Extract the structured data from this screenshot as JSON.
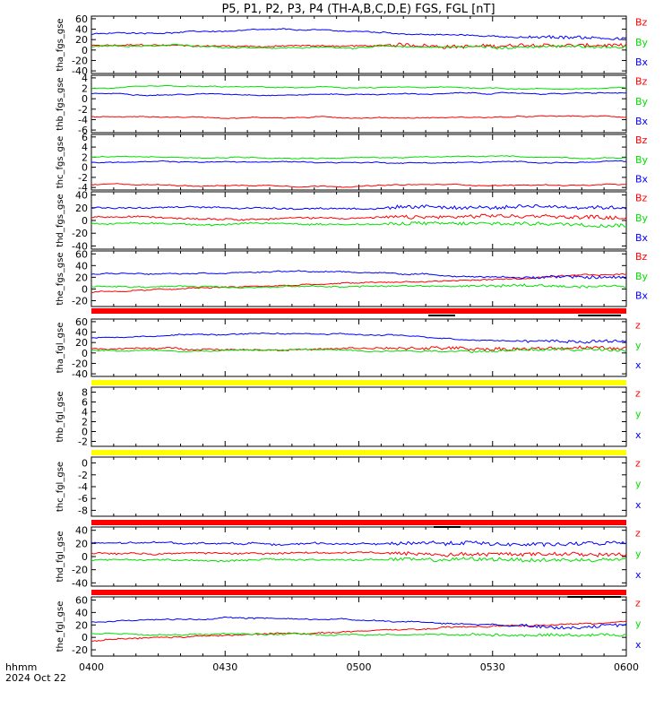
{
  "title": "P5, P1, P2, P3, P4 (TH-A,B,C,D,E) FGS, FGL [nT]",
  "colors": {
    "x": "#0000ff",
    "y": "#00e000",
    "z": "#ff0000",
    "frame": "#000000",
    "bar_red": "#ff0000",
    "bar_yellow": "#ffff00",
    "bar_black": "#000000"
  },
  "x_axis": {
    "tick_labels": [
      "0400",
      "0430",
      "0500",
      "0530",
      "0600"
    ],
    "corner_label_line1": "hhmm",
    "corner_label_line2": "2024 Oct 22"
  },
  "chart_data": [
    {
      "type": "line",
      "ylabel": "tha_fgs_gse",
      "yticks": [
        60,
        40,
        20,
        0,
        -20,
        -40
      ],
      "ylim": [
        -45,
        65
      ],
      "series": [
        {
          "name": "Bz",
          "color": "z",
          "style": "noisy_rising",
          "base": 8
        },
        {
          "name": "By",
          "color": "y",
          "style": "moderate",
          "base": 6
        },
        {
          "name": "Bx",
          "color": "x",
          "style": "high",
          "base": 30
        }
      ],
      "note_label_colors": [
        "z",
        "y",
        "x"
      ]
    },
    {
      "type": "line",
      "ylabel": "thb_fgs_gse",
      "yticks": [
        4,
        2,
        0,
        -2,
        -4,
        -6
      ],
      "ylim": [
        -6.5,
        4.5
      ],
      "series": [
        {
          "name": "Bz",
          "color": "z",
          "style": "flat",
          "base": -3.5
        },
        {
          "name": "By",
          "color": "y",
          "style": "flat",
          "base": 2
        },
        {
          "name": "Bx",
          "color": "x",
          "style": "flat",
          "base": 1
        }
      ]
    },
    {
      "type": "line",
      "ylabel": "thc_fgs_gse",
      "yticks": [
        6,
        4,
        2,
        0,
        -2,
        -4
      ],
      "ylim": [
        -4.5,
        6.5
      ],
      "series": [
        {
          "name": "Bz",
          "color": "z",
          "style": "flat",
          "base": -3.5
        },
        {
          "name": "By",
          "color": "y",
          "style": "flat",
          "base": 2
        },
        {
          "name": "Bx",
          "color": "x",
          "style": "flat",
          "base": 1
        }
      ]
    },
    {
      "type": "line",
      "ylabel": "thd_fgs_gse",
      "yticks": [
        40,
        20,
        0,
        -20,
        -40
      ],
      "ylim": [
        -45,
        45
      ],
      "series": [
        {
          "name": "Bz",
          "color": "z",
          "style": "noisy",
          "base": 5
        },
        {
          "name": "By",
          "color": "y",
          "style": "noisy",
          "base": -5
        },
        {
          "name": "Bx",
          "color": "x",
          "style": "noisy",
          "base": 20
        }
      ]
    },
    {
      "type": "line",
      "ylabel": "the_fgs_gse",
      "yticks": [
        60,
        40,
        20,
        0,
        -20
      ],
      "ylim": [
        -30,
        65
      ],
      "series": [
        {
          "name": "Bz",
          "color": "z",
          "style": "rising",
          "base": -5
        },
        {
          "name": "By",
          "color": "y",
          "style": "moderate",
          "base": 5
        },
        {
          "name": "Bx",
          "color": "x",
          "style": "high",
          "base": 25
        }
      ]
    },
    {
      "type": "line",
      "ylabel": "tha_fgl_gse",
      "yticks": [
        60,
        40,
        20,
        0,
        -20,
        -40
      ],
      "ylim": [
        -45,
        65
      ],
      "series": [
        {
          "name": "z",
          "color": "z",
          "style": "noisy_rising",
          "base": 8
        },
        {
          "name": "y",
          "color": "y",
          "style": "moderate",
          "base": 6
        },
        {
          "name": "x",
          "color": "x",
          "style": "high",
          "base": 30
        }
      ]
    },
    {
      "type": "line",
      "ylabel": "thb_fgl_gse",
      "yticks": [
        8,
        6,
        4,
        2,
        0,
        -2
      ],
      "ylim": [
        -3,
        9
      ],
      "series": [
        {
          "name": "z",
          "color": "z"
        },
        {
          "name": "y",
          "color": "y"
        },
        {
          "name": "x",
          "color": "x"
        }
      ]
    },
    {
      "type": "line",
      "ylabel": "thc_fgl_gse",
      "yticks": [
        0,
        -2,
        -4,
        -6,
        -8
      ],
      "ylim": [
        -9,
        1
      ],
      "series": [
        {
          "name": "z",
          "color": "z"
        },
        {
          "name": "y",
          "color": "y"
        },
        {
          "name": "x",
          "color": "x"
        }
      ]
    },
    {
      "type": "line",
      "ylabel": "thd_fgl_gse",
      "yticks": [
        40,
        20,
        0,
        -20,
        -40
      ],
      "ylim": [
        -45,
        45
      ],
      "series": [
        {
          "name": "z",
          "color": "z",
          "style": "noisy",
          "base": 5
        },
        {
          "name": "y",
          "color": "y",
          "style": "noisy",
          "base": -5
        },
        {
          "name": "x",
          "color": "x",
          "style": "noisy",
          "base": 20
        }
      ]
    },
    {
      "type": "line",
      "ylabel": "the_fgl_gse",
      "yticks": [
        60,
        40,
        20,
        0,
        -20
      ],
      "ylim": [
        -30,
        65
      ],
      "series": [
        {
          "name": "z",
          "color": "z",
          "style": "rising",
          "base": -5
        },
        {
          "name": "y",
          "color": "y",
          "style": "moderate",
          "base": 5
        },
        {
          "name": "x",
          "color": "x",
          "style": "high",
          "base": 25
        }
      ]
    }
  ],
  "status_bars": [
    {
      "after_panel": 4,
      "color": "bar_red",
      "black_segments": [
        [
          0.63,
          0.68
        ],
        [
          0.91,
          0.99
        ]
      ]
    },
    {
      "after_panel": 5,
      "color": "bar_yellow",
      "black_segments": []
    },
    {
      "after_panel": 6,
      "color": "bar_yellow",
      "black_segments": []
    },
    {
      "after_panel": 7,
      "color": "bar_red",
      "black_segments": [
        [
          0.64,
          0.69
        ]
      ]
    },
    {
      "after_panel": 8,
      "color": "bar_red",
      "black_segments": [
        [
          0.89,
          0.99
        ]
      ]
    }
  ]
}
